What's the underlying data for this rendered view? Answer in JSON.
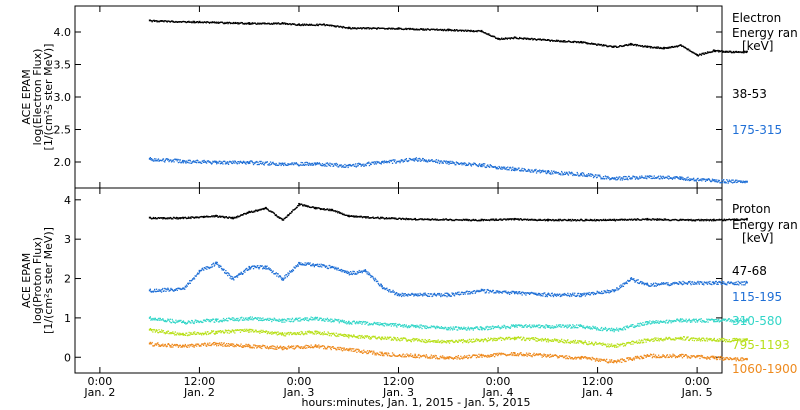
{
  "chart_data": [
    {
      "type": "scatter",
      "panel": "electron",
      "ylabel_lines": [
        "ACE EPAM",
        "log(Electron Flux)",
        "[1/(cm²s ster MeV)]"
      ],
      "ylim": [
        1.6,
        4.4
      ],
      "yticks": [
        2.0,
        2.5,
        3.0,
        3.5,
        4.0
      ],
      "ytick_labels": [
        "2.0",
        "2.5",
        "3.0",
        "3.5",
        "4.0"
      ],
      "legend_title": [
        "Electron",
        "Energy ran",
        "[keV]"
      ],
      "series": [
        {
          "name": "38-53",
          "color": "#000000",
          "x_hours": [
            0,
            6,
            12,
            16,
            18,
            21,
            24,
            30,
            36,
            40,
            42,
            44,
            48,
            52,
            56,
            58,
            60,
            62,
            64,
            66,
            68,
            70,
            72
          ],
          "y": [
            4.18,
            4.16,
            4.14,
            4.14,
            4.12,
            4.12,
            4.07,
            4.06,
            4.04,
            4.02,
            3.9,
            3.92,
            3.88,
            3.85,
            3.78,
            3.82,
            3.78,
            3.76,
            3.8,
            3.65,
            3.72,
            3.7,
            3.7
          ]
        },
        {
          "name": "175-315",
          "color": "#1f6fd6",
          "x_hours": [
            0,
            4,
            8,
            12,
            16,
            20,
            24,
            28,
            32,
            36,
            40,
            44,
            48,
            52,
            56,
            60,
            64,
            68,
            72
          ],
          "y": [
            2.05,
            2.02,
            2.0,
            2.0,
            1.98,
            1.98,
            1.95,
            2.0,
            2.05,
            2.0,
            1.96,
            1.9,
            1.85,
            1.82,
            1.75,
            1.78,
            1.76,
            1.72,
            1.7
          ]
        }
      ]
    },
    {
      "type": "scatter",
      "panel": "proton",
      "ylabel_lines": [
        "ACE EPAM",
        "log(Proton Flux)",
        "[1/(cm²s ster MeV)]"
      ],
      "ylim": [
        -0.4,
        4.3
      ],
      "yticks": [
        0,
        1,
        2,
        3,
        4
      ],
      "ytick_labels": [
        "0",
        "1",
        "2",
        "3",
        "4"
      ],
      "legend_title": [
        "Proton",
        "Energy ran",
        "[keV]"
      ],
      "series": [
        {
          "name": "47-68",
          "color": "#000000",
          "x_hours": [
            0,
            4,
            8,
            10,
            12,
            14,
            16,
            18,
            20,
            22,
            24,
            28,
            32,
            40,
            44,
            48,
            52,
            56,
            60,
            64,
            68,
            72
          ],
          "y": [
            3.55,
            3.55,
            3.6,
            3.55,
            3.7,
            3.8,
            3.5,
            3.9,
            3.8,
            3.75,
            3.6,
            3.55,
            3.52,
            3.5,
            3.52,
            3.5,
            3.5,
            3.5,
            3.52,
            3.5,
            3.5,
            3.52
          ]
        },
        {
          "name": "115-195",
          "color": "#1f6fd6",
          "x_hours": [
            0,
            4,
            6,
            8,
            10,
            12,
            14,
            16,
            18,
            20,
            22,
            24,
            26,
            28,
            30,
            32,
            36,
            40,
            44,
            48,
            52,
            56,
            58,
            60,
            64,
            68,
            72
          ],
          "y": [
            1.7,
            1.75,
            2.2,
            2.4,
            2.0,
            2.3,
            2.3,
            2.0,
            2.4,
            2.35,
            2.3,
            2.15,
            2.2,
            1.8,
            1.6,
            1.6,
            1.6,
            1.7,
            1.65,
            1.6,
            1.6,
            1.7,
            2.0,
            1.85,
            1.9,
            1.9,
            1.9
          ]
        },
        {
          "name": "310-580",
          "color": "#33d6c8",
          "x_hours": [
            0,
            4,
            8,
            12,
            16,
            20,
            24,
            28,
            32,
            36,
            40,
            44,
            48,
            52,
            56,
            60,
            64,
            68,
            72
          ],
          "y": [
            1.0,
            0.9,
            0.95,
            1.0,
            0.95,
            1.0,
            0.9,
            0.85,
            0.8,
            0.75,
            0.75,
            0.8,
            0.8,
            0.8,
            0.7,
            0.9,
            0.95,
            0.95,
            0.95
          ]
        },
        {
          "name": "795-1193",
          "color": "#b8e01a",
          "x_hours": [
            0,
            4,
            8,
            12,
            16,
            20,
            24,
            28,
            32,
            36,
            40,
            44,
            48,
            52,
            56,
            60,
            64,
            68,
            72
          ],
          "y": [
            0.7,
            0.6,
            0.65,
            0.7,
            0.6,
            0.65,
            0.55,
            0.5,
            0.45,
            0.4,
            0.45,
            0.5,
            0.45,
            0.4,
            0.3,
            0.45,
            0.5,
            0.45,
            0.45
          ]
        },
        {
          "name": "1060-1900",
          "color": "#ee8a1e",
          "x_hours": [
            0,
            4,
            8,
            12,
            16,
            20,
            24,
            28,
            32,
            36,
            40,
            44,
            48,
            52,
            56,
            60,
            64,
            68,
            72
          ],
          "y": [
            0.35,
            0.3,
            0.35,
            0.3,
            0.25,
            0.3,
            0.2,
            0.1,
            0.05,
            0.0,
            0.05,
            0.1,
            0.05,
            0.0,
            -0.1,
            0.05,
            0.05,
            0.0,
            -0.05
          ]
        }
      ]
    }
  ],
  "x_axis": {
    "ticks": [
      {
        "x_hours": -6,
        "time": "0:00",
        "date": "Jan. 2"
      },
      {
        "x_hours": 6,
        "time": "12:00",
        "date": "Jan. 2"
      },
      {
        "x_hours": 18,
        "time": "0:00",
        "date": "Jan. 3"
      },
      {
        "x_hours": 30,
        "time": "12:00",
        "date": "Jan. 3"
      },
      {
        "x_hours": 42,
        "time": "0:00",
        "date": "Jan. 4"
      },
      {
        "x_hours": 54,
        "time": "12:00",
        "date": "Jan. 4"
      },
      {
        "x_hours": 66,
        "time": "0:00",
        "date": "Jan. 5"
      }
    ],
    "xlim": [
      -9,
      69
    ],
    "xlabel": "hours:minutes, Jan.  1, 2015 - Jan.  5, 2015"
  }
}
